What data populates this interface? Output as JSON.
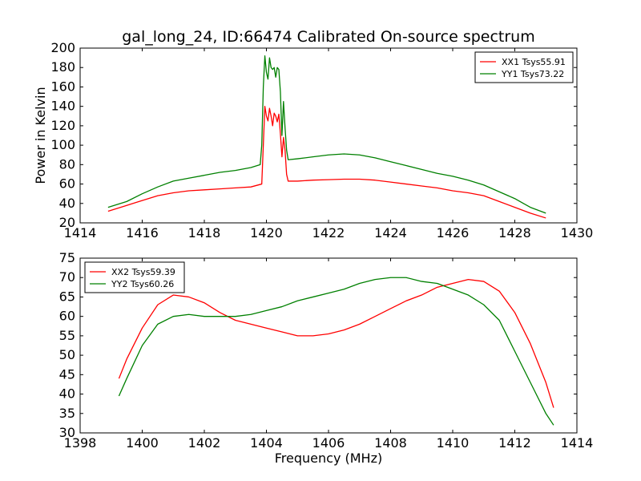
{
  "figure": {
    "title": "gal_long_24, ID:66474 Calibrated On-source spectrum",
    "xlabel": "Frequency (MHz)"
  },
  "chart_data": [
    {
      "type": "line",
      "title": "gal_long_24, ID:66474 Calibrated On-source spectrum",
      "xlabel": "",
      "ylabel": "Power in Kelvin",
      "xlim": [
        1414,
        1430
      ],
      "ylim": [
        20,
        200
      ],
      "xticks": [
        1414,
        1416,
        1418,
        1420,
        1422,
        1424,
        1426,
        1428,
        1430
      ],
      "yticks": [
        20,
        40,
        60,
        80,
        100,
        120,
        140,
        160,
        180,
        200
      ],
      "grid": false,
      "legend_position": "top-right",
      "series": [
        {
          "name": "XX1 Tsys55.91",
          "color": "#ff0000",
          "points": [
            [
              1414.9,
              32
            ],
            [
              1415.5,
              38
            ],
            [
              1416,
              43
            ],
            [
              1416.5,
              48
            ],
            [
              1417,
              51
            ],
            [
              1417.5,
              53
            ],
            [
              1418,
              54
            ],
            [
              1418.5,
              55
            ],
            [
              1419,
              56
            ],
            [
              1419.5,
              57
            ],
            [
              1419.85,
              60
            ],
            [
              1419.9,
              100
            ],
            [
              1419.95,
              140
            ],
            [
              1420.0,
              130
            ],
            [
              1420.05,
              125
            ],
            [
              1420.1,
              138
            ],
            [
              1420.15,
              130
            ],
            [
              1420.2,
              120
            ],
            [
              1420.25,
              133
            ],
            [
              1420.3,
              130
            ],
            [
              1420.35,
              124
            ],
            [
              1420.4,
              132
            ],
            [
              1420.45,
              112
            ],
            [
              1420.5,
              88
            ],
            [
              1420.55,
              108
            ],
            [
              1420.6,
              95
            ],
            [
              1420.65,
              70
            ],
            [
              1420.7,
              63
            ],
            [
              1421,
              63
            ],
            [
              1421.5,
              64
            ],
            [
              1422,
              64.5
            ],
            [
              1422.5,
              65
            ],
            [
              1423,
              65
            ],
            [
              1423.5,
              64
            ],
            [
              1424,
              62
            ],
            [
              1424.5,
              60
            ],
            [
              1425,
              58
            ],
            [
              1425.5,
              56
            ],
            [
              1426,
              53
            ],
            [
              1426.5,
              51
            ],
            [
              1427,
              48
            ],
            [
              1427.5,
              42
            ],
            [
              1428,
              36
            ],
            [
              1428.5,
              30
            ],
            [
              1429,
              25
            ]
          ]
        },
        {
          "name": "YY1 Tsys73.22",
          "color": "#008000",
          "points": [
            [
              1414.9,
              36
            ],
            [
              1415.5,
              42
            ],
            [
              1416,
              50
            ],
            [
              1416.5,
              57
            ],
            [
              1417,
              63
            ],
            [
              1417.5,
              66
            ],
            [
              1418,
              69
            ],
            [
              1418.5,
              72
            ],
            [
              1419,
              74
            ],
            [
              1419.5,
              77
            ],
            [
              1419.8,
              80
            ],
            [
              1419.85,
              100
            ],
            [
              1419.9,
              160
            ],
            [
              1419.95,
              192
            ],
            [
              1420.0,
              175
            ],
            [
              1420.05,
              168
            ],
            [
              1420.1,
              190
            ],
            [
              1420.15,
              180
            ],
            [
              1420.2,
              178
            ],
            [
              1420.25,
              180
            ],
            [
              1420.3,
              170
            ],
            [
              1420.35,
              180
            ],
            [
              1420.4,
              178
            ],
            [
              1420.45,
              155
            ],
            [
              1420.5,
              110
            ],
            [
              1420.55,
              145
            ],
            [
              1420.6,
              118
            ],
            [
              1420.65,
              95
            ],
            [
              1420.7,
              85
            ],
            [
              1421,
              86
            ],
            [
              1421.5,
              88
            ],
            [
              1422,
              90
            ],
            [
              1422.5,
              91
            ],
            [
              1423,
              90
            ],
            [
              1423.5,
              87
            ],
            [
              1424,
              83
            ],
            [
              1424.5,
              79
            ],
            [
              1425,
              75
            ],
            [
              1425.5,
              71
            ],
            [
              1426,
              68
            ],
            [
              1426.5,
              64
            ],
            [
              1427,
              59
            ],
            [
              1427.5,
              52
            ],
            [
              1428,
              45
            ],
            [
              1428.5,
              36
            ],
            [
              1429,
              30
            ]
          ]
        }
      ]
    },
    {
      "type": "line",
      "title": "",
      "xlabel": "Frequency (MHz)",
      "ylabel": "",
      "xlim": [
        1398,
        1414
      ],
      "ylim": [
        30,
        75
      ],
      "xticks": [
        1398,
        1400,
        1402,
        1404,
        1406,
        1408,
        1410,
        1412,
        1414
      ],
      "yticks": [
        30,
        35,
        40,
        45,
        50,
        55,
        60,
        65,
        70,
        75
      ],
      "grid": false,
      "legend_position": "top-left",
      "series": [
        {
          "name": "XX2 Tsys59.39",
          "color": "#ff0000",
          "points": [
            [
              1399.25,
              44
            ],
            [
              1399.5,
              49
            ],
            [
              1400,
              57
            ],
            [
              1400.5,
              63
            ],
            [
              1401,
              65.5
            ],
            [
              1401.5,
              65
            ],
            [
              1402,
              63.5
            ],
            [
              1402.5,
              61
            ],
            [
              1403,
              59
            ],
            [
              1403.5,
              58
            ],
            [
              1404,
              57
            ],
            [
              1404.5,
              56
            ],
            [
              1405,
              55
            ],
            [
              1405.5,
              55
            ],
            [
              1406,
              55.5
            ],
            [
              1406.5,
              56.5
            ],
            [
              1407,
              58
            ],
            [
              1407.5,
              60
            ],
            [
              1408,
              62
            ],
            [
              1408.5,
              64
            ],
            [
              1409,
              65.5
            ],
            [
              1409.5,
              67.5
            ],
            [
              1410,
              68.5
            ],
            [
              1410.5,
              69.5
            ],
            [
              1411,
              69
            ],
            [
              1411.5,
              66.5
            ],
            [
              1412,
              61
            ],
            [
              1412.5,
              53
            ],
            [
              1413,
              43
            ],
            [
              1413.25,
              36.5
            ]
          ]
        },
        {
          "name": "YY2 Tsys60.26",
          "color": "#008000",
          "points": [
            [
              1399.25,
              39.5
            ],
            [
              1399.5,
              44
            ],
            [
              1400,
              52.5
            ],
            [
              1400.5,
              58
            ],
            [
              1401,
              60
            ],
            [
              1401.5,
              60.5
            ],
            [
              1402,
              60
            ],
            [
              1402.5,
              60
            ],
            [
              1403,
              60
            ],
            [
              1403.5,
              60.5
            ],
            [
              1404,
              61.5
            ],
            [
              1404.5,
              62.5
            ],
            [
              1405,
              64
            ],
            [
              1405.5,
              65
            ],
            [
              1406,
              66
            ],
            [
              1406.5,
              67
            ],
            [
              1407,
              68.5
            ],
            [
              1407.5,
              69.5
            ],
            [
              1408,
              70
            ],
            [
              1408.5,
              70
            ],
            [
              1409,
              69
            ],
            [
              1409.5,
              68.5
            ],
            [
              1410,
              67
            ],
            [
              1410.5,
              65.5
            ],
            [
              1411,
              63
            ],
            [
              1411.5,
              59
            ],
            [
              1412,
              51
            ],
            [
              1412.5,
              43
            ],
            [
              1413,
              35
            ],
            [
              1413.25,
              32
            ]
          ]
        }
      ]
    }
  ]
}
